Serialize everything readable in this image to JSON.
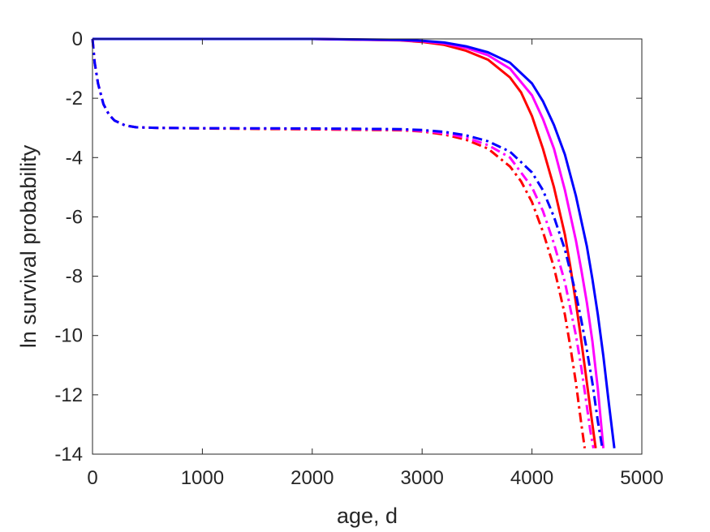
{
  "chart_data": {
    "type": "line",
    "title": "",
    "xlabel": "age, d",
    "ylabel": "ln survival probability",
    "xlim": [
      0,
      5000
    ],
    "ylim": [
      -14,
      0
    ],
    "xticks": [
      0,
      1000,
      2000,
      3000,
      4000,
      5000
    ],
    "yticks": [
      0,
      -2,
      -4,
      -6,
      -8,
      -10,
      -12,
      -14
    ],
    "grid": false,
    "legend": "none",
    "series": [
      {
        "color": "#ff0000",
        "style": "solid",
        "x": [
          0,
          1000,
          2000,
          2800,
          3000,
          3200,
          3400,
          3600,
          3800,
          3900,
          4000,
          4100,
          4200,
          4300,
          4350,
          4400,
          4450,
          4500,
          4550,
          4580
        ],
        "y": [
          0,
          0,
          0,
          -0.05,
          -0.1,
          -0.2,
          -0.4,
          -0.7,
          -1.3,
          -1.8,
          -2.6,
          -3.7,
          -5.0,
          -6.6,
          -7.7,
          -8.9,
          -10.2,
          -11.6,
          -13.0,
          -13.8
        ]
      },
      {
        "color": "#ff00ff",
        "style": "solid",
        "x": [
          0,
          1000,
          2000,
          2800,
          3000,
          3200,
          3400,
          3600,
          3800,
          4000,
          4100,
          4200,
          4300,
          4400,
          4450,
          4500,
          4550,
          4600,
          4650
        ],
        "y": [
          0,
          0,
          0,
          -0.04,
          -0.08,
          -0.15,
          -0.3,
          -0.55,
          -1.0,
          -1.9,
          -2.7,
          -3.7,
          -5.1,
          -6.8,
          -7.8,
          -8.9,
          -10.2,
          -11.8,
          -13.8
        ]
      },
      {
        "color": "#0000ff",
        "style": "solid",
        "x": [
          0,
          1000,
          2000,
          2800,
          3000,
          3200,
          3400,
          3600,
          3800,
          4000,
          4100,
          4200,
          4300,
          4400,
          4500,
          4550,
          4600,
          4650,
          4700,
          4750
        ],
        "y": [
          0,
          0,
          0,
          -0.03,
          -0.06,
          -0.12,
          -0.25,
          -0.45,
          -0.8,
          -1.5,
          -2.1,
          -2.9,
          -3.9,
          -5.3,
          -7.0,
          -8.1,
          -9.3,
          -10.7,
          -12.3,
          -13.8
        ]
      },
      {
        "color": "#ff0000",
        "style": "dashdot",
        "x": [
          0,
          20,
          50,
          100,
          150,
          200,
          300,
          400,
          600,
          1000,
          2000,
          2800,
          3000,
          3200,
          3400,
          3600,
          3800,
          3900,
          4000,
          4100,
          4200,
          4300,
          4350,
          4400,
          4450,
          4480
        ],
        "y": [
          0,
          -0.8,
          -1.5,
          -2.2,
          -2.55,
          -2.75,
          -2.92,
          -2.98,
          -3.0,
          -3.02,
          -3.05,
          -3.08,
          -3.12,
          -3.22,
          -3.4,
          -3.7,
          -4.3,
          -4.8,
          -5.5,
          -6.5,
          -7.7,
          -9.3,
          -10.4,
          -11.6,
          -13.0,
          -13.8
        ]
      },
      {
        "color": "#ff00ff",
        "style": "dashdot",
        "x": [
          0,
          20,
          50,
          100,
          150,
          200,
          300,
          400,
          600,
          1000,
          2000,
          2800,
          3000,
          3200,
          3400,
          3600,
          3800,
          4000,
          4100,
          4200,
          4300,
          4400,
          4450,
          4500,
          4530,
          4560
        ],
        "y": [
          0,
          -0.8,
          -1.5,
          -2.2,
          -2.55,
          -2.75,
          -2.92,
          -2.98,
          -3.0,
          -3.01,
          -3.03,
          -3.06,
          -3.1,
          -3.18,
          -3.33,
          -3.58,
          -4.0,
          -5.0,
          -5.8,
          -6.9,
          -8.2,
          -10.0,
          -11.1,
          -12.4,
          -13.2,
          -13.8
        ]
      },
      {
        "color": "#0000ff",
        "style": "dashdot",
        "x": [
          0,
          20,
          50,
          100,
          150,
          200,
          300,
          400,
          600,
          1000,
          2000,
          2800,
          3000,
          3200,
          3400,
          3600,
          3800,
          4000,
          4100,
          4200,
          4300,
          4400,
          4450,
          4500,
          4550,
          4600,
          4640
        ],
        "y": [
          0,
          -0.8,
          -1.5,
          -2.2,
          -2.55,
          -2.75,
          -2.92,
          -2.98,
          -3.0,
          -3.01,
          -3.02,
          -3.04,
          -3.07,
          -3.13,
          -3.25,
          -3.45,
          -3.8,
          -4.5,
          -5.1,
          -6.0,
          -7.1,
          -8.6,
          -9.5,
          -10.5,
          -11.6,
          -12.9,
          -13.8
        ]
      }
    ]
  }
}
